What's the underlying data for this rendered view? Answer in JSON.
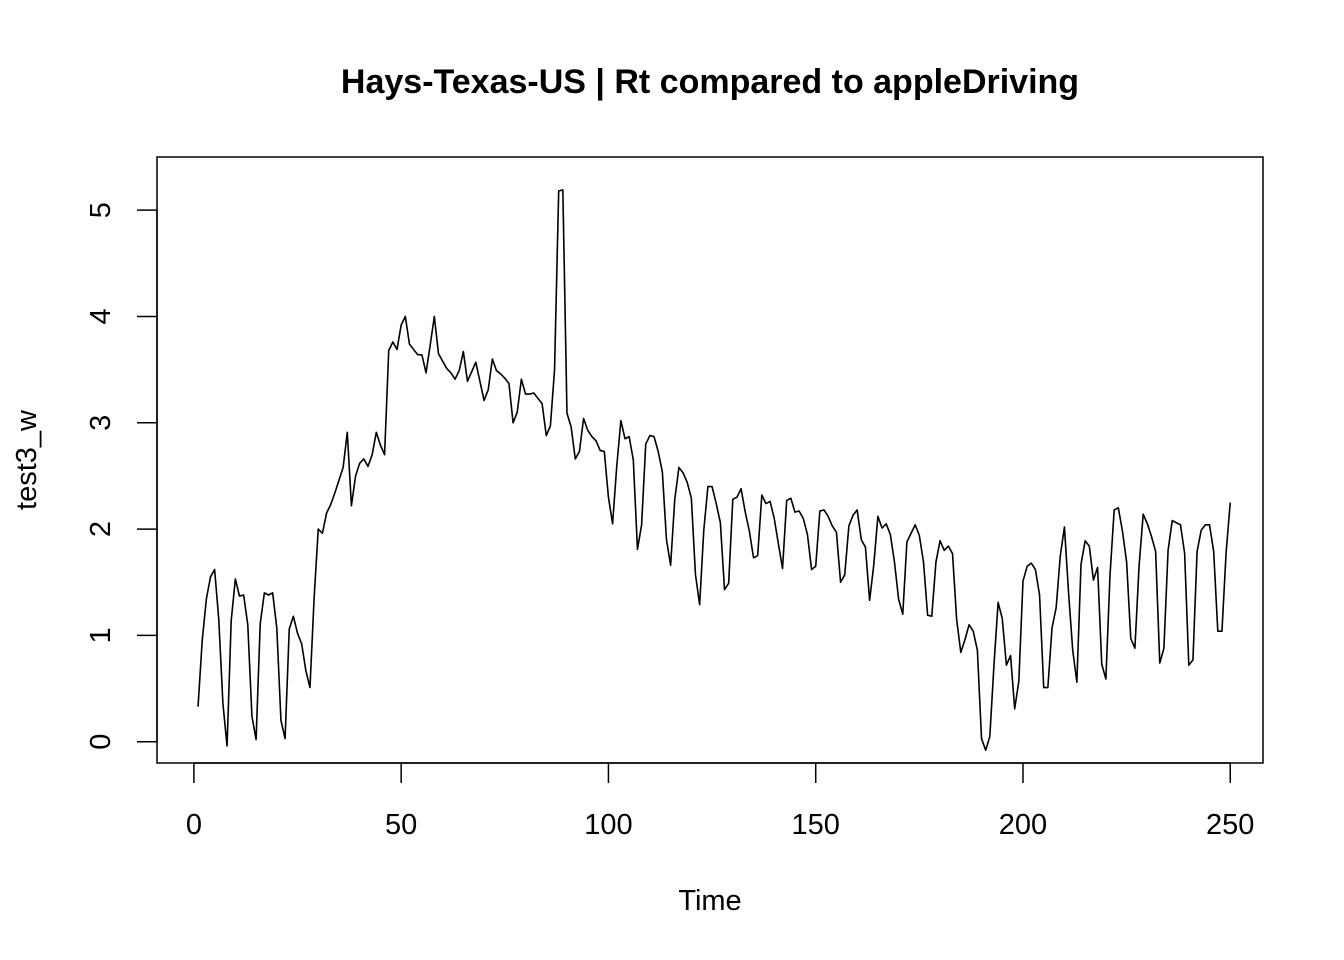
{
  "chart_data": {
    "type": "line",
    "title": "Hays-Texas-US | Rt compared to appleDriving",
    "xlabel": "Time",
    "ylabel": "test3_w",
    "xlim": [
      -8.9,
      257.9
    ],
    "ylim": [
      -0.2,
      5.5
    ],
    "xticks": [
      0,
      50,
      100,
      150,
      200,
      250
    ],
    "yticks": [
      0,
      1,
      2,
      3,
      4,
      5
    ],
    "grid": false,
    "legend": "none",
    "line_color": "#000000",
    "series": [
      {
        "x_start": 1,
        "values": [
          0.33,
          0.95,
          1.34,
          1.55,
          1.62,
          1.15,
          0.36,
          -0.04,
          1.14,
          1.53,
          1.37,
          1.38,
          1.1,
          0.24,
          0.02,
          1.11,
          1.4,
          1.38,
          1.4,
          1.07,
          0.2,
          0.03,
          1.06,
          1.18,
          1.02,
          0.92,
          0.67,
          0.51,
          1.35,
          2.0,
          1.96,
          2.15,
          2.23,
          2.34,
          2.46,
          2.58,
          2.91,
          2.22,
          2.5,
          2.62,
          2.66,
          2.59,
          2.7,
          2.91,
          2.79,
          2.7,
          3.68,
          3.76,
          3.69,
          3.92,
          4.0,
          3.74,
          3.69,
          3.64,
          3.64,
          3.47,
          3.73,
          4.0,
          3.65,
          3.58,
          3.51,
          3.47,
          3.41,
          3.49,
          3.67,
          3.39,
          3.48,
          3.57,
          3.39,
          3.21,
          3.31,
          3.6,
          3.49,
          3.46,
          3.42,
          3.37,
          3.0,
          3.1,
          3.41,
          3.27,
          3.27,
          3.28,
          3.23,
          3.18,
          2.88,
          2.97,
          3.5,
          5.18,
          5.19,
          3.09,
          2.96,
          2.66,
          2.73,
          3.04,
          2.93,
          2.87,
          2.83,
          2.74,
          2.73,
          2.3,
          2.05,
          2.59,
          3.02,
          2.85,
          2.87,
          2.65,
          1.81,
          2.04,
          2.8,
          2.88,
          2.87,
          2.73,
          2.54,
          1.9,
          1.66,
          2.28,
          2.58,
          2.53,
          2.44,
          2.29,
          1.57,
          1.29,
          1.99,
          2.4,
          2.4,
          2.24,
          2.06,
          1.43,
          1.49,
          2.28,
          2.3,
          2.38,
          2.16,
          1.98,
          1.73,
          1.75,
          2.32,
          2.24,
          2.26,
          2.1,
          1.86,
          1.63,
          2.27,
          2.29,
          2.16,
          2.17,
          2.1,
          1.95,
          1.62,
          1.65,
          2.17,
          2.18,
          2.12,
          2.03,
          1.97,
          1.5,
          1.57,
          2.03,
          2.13,
          2.18,
          1.9,
          1.83,
          1.33,
          1.66,
          2.12,
          2.01,
          2.05,
          1.95,
          1.69,
          1.34,
          1.2,
          1.88,
          1.96,
          2.04,
          1.94,
          1.69,
          1.19,
          1.18,
          1.69,
          1.89,
          1.8,
          1.84,
          1.77,
          1.15,
          0.84,
          0.96,
          1.1,
          1.04,
          0.86,
          0.03,
          -0.08,
          0.05,
          0.72,
          1.31,
          1.16,
          0.72,
          0.81,
          0.31,
          0.57,
          1.51,
          1.65,
          1.68,
          1.62,
          1.38,
          0.51,
          0.51,
          1.07,
          1.26,
          1.75,
          2.02,
          1.4,
          0.86,
          0.56,
          1.67,
          1.89,
          1.84,
          1.52,
          1.64,
          0.73,
          0.59,
          1.57,
          2.18,
          2.2,
          1.98,
          1.69,
          0.97,
          0.88,
          1.65,
          2.14,
          2.05,
          1.93,
          1.79,
          0.74,
          0.88,
          1.8,
          2.08,
          2.06,
          2.04,
          1.77,
          0.72,
          0.77,
          1.79,
          1.99,
          2.04,
          2.04,
          1.79,
          1.04,
          1.04,
          1.78,
          2.25
        ]
      }
    ]
  }
}
